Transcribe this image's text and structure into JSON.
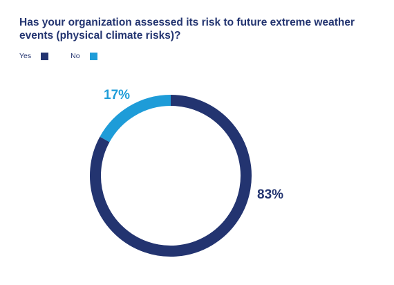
{
  "chart_data": {
    "type": "pie",
    "title": "Has your organization assessed its risk to future extreme weather events (physical climate risks)?",
    "categories": [
      "Yes",
      "No"
    ],
    "values": [
      83,
      17
    ],
    "value_labels": [
      "83%",
      "17%"
    ],
    "colors": [
      "#233470",
      "#1e9cd8"
    ],
    "donut": true,
    "legend_position": "top-left"
  }
}
